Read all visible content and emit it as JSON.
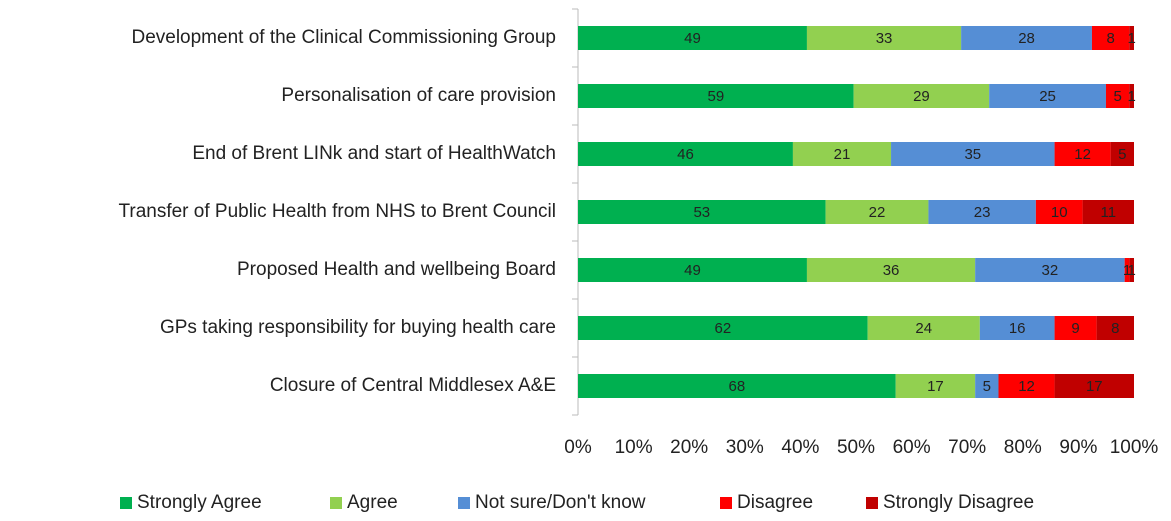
{
  "chart_data": {
    "type": "stacked_bar_100",
    "categories": [
      "Development of the Clinical Commissioning Group",
      "Personalisation of care provision",
      "End of Brent LINk and start of HealthWatch",
      "Transfer of Public Health from NHS to Brent Council",
      "Proposed Health and wellbeing Board",
      "GPs taking responsibility for buying health care",
      "Closure of Central Middlesex A&E"
    ],
    "series": [
      {
        "name": "Strongly Agree",
        "color": "#00b050",
        "values": [
          49,
          59,
          46,
          53,
          49,
          62,
          68
        ]
      },
      {
        "name": "Agree",
        "color": "#92d050",
        "values": [
          33,
          29,
          21,
          22,
          36,
          24,
          17
        ]
      },
      {
        "name": "Not sure/Don't know",
        "color": "#558ed5",
        "values": [
          28,
          25,
          35,
          23,
          32,
          16,
          5
        ]
      },
      {
        "name": "Disagree",
        "color": "#ff0000",
        "values": [
          8,
          5,
          12,
          10,
          1,
          9,
          12
        ]
      },
      {
        "name": "Strongly Disagree",
        "color": "#c00000",
        "values": [
          1,
          1,
          5,
          11,
          1,
          8,
          17
        ]
      }
    ],
    "xlim": [
      0,
      100
    ],
    "xticks": [
      {
        "value": 0,
        "label": "0%"
      },
      {
        "value": 10,
        "label": "10%"
      },
      {
        "value": 20,
        "label": "20%"
      },
      {
        "value": 30,
        "label": "30%"
      },
      {
        "value": 40,
        "label": "40%"
      },
      {
        "value": 50,
        "label": "50%"
      },
      {
        "value": 60,
        "label": "60%"
      },
      {
        "value": 70,
        "label": "70%"
      },
      {
        "value": 80,
        "label": "80%"
      },
      {
        "value": 90,
        "label": "90%"
      },
      {
        "value": 100,
        "label": "100%"
      }
    ],
    "legend": "bottom"
  }
}
